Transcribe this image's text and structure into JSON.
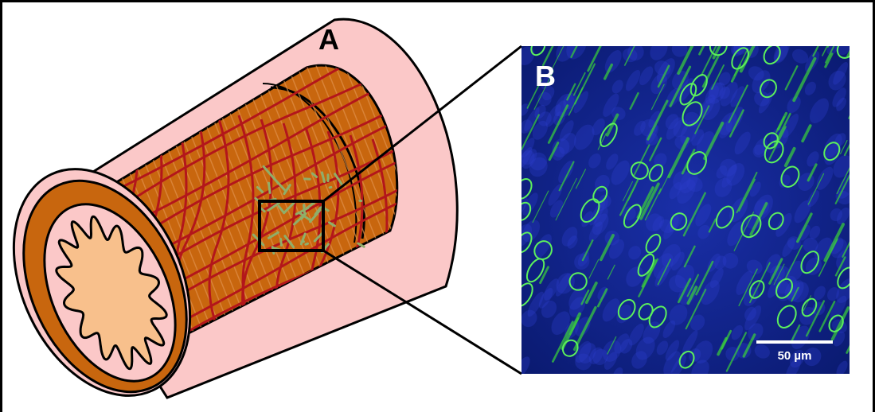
{
  "panels": [
    {
      "label": "A"
    },
    {
      "label": "B",
      "scale_bar": "50 µm"
    }
  ]
}
